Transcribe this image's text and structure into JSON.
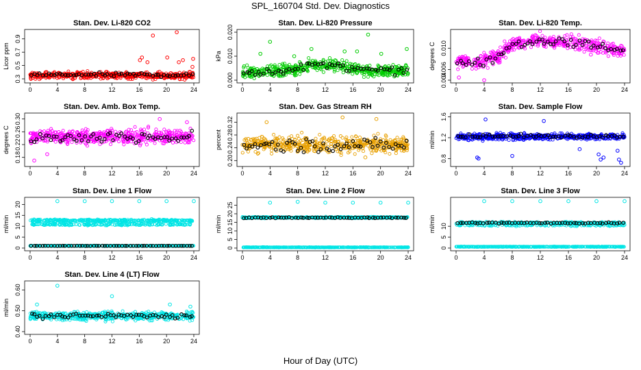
{
  "figure": {
    "title": "SPL_160704  Std. Dev. Diagnostics",
    "xlabel": "Hour of Day (UTC)"
  },
  "chart_data": [
    {
      "type": "scatter",
      "title": "Stan. Dev. Li-820 CO2",
      "ylabel": "Licor ppm",
      "xlim": [
        0,
        24
      ],
      "xticks": [
        "0",
        "4",
        "8",
        "12",
        "16",
        "20",
        "24"
      ],
      "ylim": [
        0.28,
        1.0
      ],
      "yticks": [
        "0.3",
        "0.5",
        "0.7",
        "0.9"
      ],
      "colors": {
        "cloud": "#ff0000",
        "means": "#000000"
      },
      "series": [
        {
          "role": "cloud",
          "mean": 0.35,
          "spread": 0.05,
          "count": 520,
          "outliers": [
            [
              16.1,
              0.58
            ],
            [
              16.4,
              0.62
            ],
            [
              17.2,
              0.55
            ],
            [
              18.0,
              0.95
            ],
            [
              20.1,
              0.62
            ],
            [
              21.5,
              1.0
            ],
            [
              21.8,
              0.55
            ],
            [
              22.4,
              0.58
            ],
            [
              23.8,
              0.48
            ],
            [
              23.9,
              0.6
            ]
          ]
        },
        {
          "role": "means",
          "mean": 0.36,
          "spread": 0.03,
          "count": 58
        }
      ]
    },
    {
      "type": "scatter",
      "title": "Stan. Dev. Li-820 Pressure",
      "ylabel": "kPa",
      "xlim": [
        0,
        24
      ],
      "xticks": [
        "0",
        "4",
        "8",
        "12",
        "16",
        "20",
        "24"
      ],
      "ylim": [
        0.0,
        0.02
      ],
      "yticks": [
        "0.000",
        "0.010",
        "0.020"
      ],
      "colors": {
        "cloud": "#00cc00",
        "means": "#000000"
      },
      "series": [
        {
          "role": "cloud",
          "mean": 0.004,
          "spread": 0.0025,
          "count": 520,
          "trend": [
            [
              0,
              0.003
            ],
            [
              8,
              0.0045
            ],
            [
              10,
              0.0065
            ],
            [
              14,
              0.006
            ],
            [
              18,
              0.004
            ],
            [
              24,
              0.004
            ]
          ],
          "outliers": [
            [
              2.6,
              0.011
            ],
            [
              4.0,
              0.016
            ],
            [
              7.5,
              0.01
            ],
            [
              10.0,
              0.013
            ],
            [
              14.8,
              0.012
            ],
            [
              16.6,
              0.012
            ],
            [
              18.2,
              0.019
            ],
            [
              20.1,
              0.011
            ],
            [
              23.8,
              0.013
            ]
          ]
        },
        {
          "role": "means",
          "mean": 0.0045,
          "spread": 0.0015,
          "count": 58,
          "trend": [
            [
              0,
              0.003
            ],
            [
              8,
              0.0045
            ],
            [
              10,
              0.0065
            ],
            [
              14,
              0.006
            ],
            [
              18,
              0.004
            ],
            [
              24,
              0.004
            ]
          ]
        }
      ]
    },
    {
      "type": "scatter",
      "title": "Stan. Dev. Li-820 Temp.",
      "ylabel": "degrees C",
      "xlim": [
        0,
        24
      ],
      "xticks": [
        "0",
        "4",
        "8",
        "12",
        "16",
        "20",
        "24"
      ],
      "ylim": [
        0.004,
        0.013
      ],
      "yticks": [
        "0.004",
        "0.006",
        "0.010"
      ],
      "colors": {
        "cloud": "#ff00ff",
        "means": "#000000"
      },
      "series": [
        {
          "role": "cloud",
          "mean": 0.009,
          "spread": 0.0012,
          "count": 520,
          "trend": [
            [
              0,
              0.0075
            ],
            [
              3,
              0.0072
            ],
            [
              6,
              0.0085
            ],
            [
              8,
              0.0108
            ],
            [
              12,
              0.0115
            ],
            [
              16,
              0.011
            ],
            [
              20,
              0.0105
            ],
            [
              24,
              0.0093
            ]
          ],
          "outliers": [
            [
              0.4,
              0.0045
            ],
            [
              4.0,
              0.004
            ],
            [
              19.2,
              0.0088
            ]
          ]
        },
        {
          "role": "means",
          "mean": 0.009,
          "spread": 0.0008,
          "count": 58,
          "trend": [
            [
              0,
              0.0075
            ],
            [
              3,
              0.0072
            ],
            [
              6,
              0.0085
            ],
            [
              8,
              0.0108
            ],
            [
              12,
              0.0115
            ],
            [
              16,
              0.011
            ],
            [
              20,
              0.0105
            ],
            [
              24,
              0.0093
            ]
          ]
        }
      ]
    },
    {
      "type": "scatter",
      "title": "Stan. Dev. Amb. Box Temp.",
      "ylabel": "degrees C",
      "xlim": [
        0,
        24
      ],
      "xticks": [
        "0",
        "4",
        "8",
        "12",
        "16",
        "20",
        "24"
      ],
      "ylim": [
        0.16,
        0.31
      ],
      "yticks": [
        "0.18",
        "0.22",
        "0.26",
        "0.30"
      ],
      "colors": {
        "cloud": "#ff00ff",
        "means": "#000000"
      },
      "series": [
        {
          "role": "cloud",
          "mean": 0.245,
          "spread": 0.022,
          "count": 520,
          "outliers": [
            [
              0.6,
              0.17
            ],
            [
              2.5,
              0.19
            ],
            [
              19.0,
              0.3
            ],
            [
              23.0,
              0.29
            ]
          ]
        },
        {
          "role": "means",
          "mean": 0.243,
          "spread": 0.018,
          "count": 58
        }
      ]
    },
    {
      "type": "scatter",
      "title": "Stan. Dev. Gas Stream RH",
      "ylabel": "percent",
      "xlim": [
        0,
        24
      ],
      "xticks": [
        "0",
        "4",
        "8",
        "12",
        "16",
        "20",
        "24"
      ],
      "ylim": [
        0.19,
        0.34
      ],
      "yticks": [
        "0.20",
        "0.24",
        "0.28",
        "0.32"
      ],
      "colors": {
        "cloud": "#e8a000",
        "means": "#000000"
      },
      "series": [
        {
          "role": "cloud",
          "mean": 0.25,
          "spread": 0.025,
          "count": 520,
          "outliers": [
            [
              3.5,
              0.32
            ],
            [
              14.5,
              0.335
            ],
            [
              19.4,
              0.33
            ],
            [
              17.8,
              0.21
            ]
          ]
        },
        {
          "role": "means",
          "mean": 0.248,
          "spread": 0.02,
          "count": 58
        }
      ]
    },
    {
      "type": "scatter",
      "title": "Stan. Dev. Sample Flow",
      "ylabel": "ml/min",
      "xlim": [
        0,
        24
      ],
      "xticks": [
        "0",
        "4",
        "8",
        "12",
        "16",
        "20",
        "24"
      ],
      "ylim": [
        0.7,
        1.62
      ],
      "yticks": [
        "0.8",
        "1.2",
        "1.6"
      ],
      "colors": {
        "cloud": "#0000ff",
        "means": "#000000"
      },
      "series": [
        {
          "role": "cloud",
          "mean": 1.22,
          "spread": 0.06,
          "count": 520,
          "outliers": [
            [
              3.0,
              0.82
            ],
            [
              3.2,
              0.8
            ],
            [
              4.2,
              1.55
            ],
            [
              8.0,
              0.85
            ],
            [
              12.5,
              1.52
            ],
            [
              17.6,
              0.98
            ],
            [
              20.3,
              0.88
            ],
            [
              20.6,
              0.78
            ],
            [
              21.0,
              0.82
            ],
            [
              23.2,
              0.78
            ],
            [
              23.5,
              0.72
            ],
            [
              23.0,
              0.95
            ]
          ]
        },
        {
          "role": "means",
          "mean": 1.23,
          "spread": 0.03,
          "count": 58
        }
      ]
    },
    {
      "type": "scatter",
      "title": "Stan. Dev. Line 1 Flow",
      "ylabel": "ml/min",
      "xlim": [
        0,
        24
      ],
      "xticks": [
        "0",
        "4",
        "8",
        "12",
        "16",
        "20",
        "24"
      ],
      "ylim": [
        0,
        22
      ],
      "yticks": [
        "0",
        "5",
        "10",
        "15",
        "20"
      ],
      "colors": {
        "cloud": "#00e5e5",
        "means": "#000000"
      },
      "series": [
        {
          "role": "cloud",
          "mean": 12.6,
          "spread": 0.5,
          "count": 330,
          "outliers": [
            [
              4.0,
              21.5
            ],
            [
              8.0,
              21.5
            ],
            [
              12.0,
              21.5
            ],
            [
              16.0,
              21.5
            ],
            [
              20.0,
              21.5
            ],
            [
              24.0,
              21.5
            ]
          ]
        },
        {
          "role": "cloud",
          "mean": 10.8,
          "spread": 0.4,
          "count": 200
        },
        {
          "role": "cloud",
          "mean": 1.0,
          "spread": 0.1,
          "count": 330
        },
        {
          "role": "means",
          "mean": 1.0,
          "spread": 0.05,
          "count": 58
        }
      ]
    },
    {
      "type": "scatter",
      "title": "Stan. Dev. Line 2 Flow",
      "ylabel": "ml/min",
      "xlim": [
        0,
        24
      ],
      "xticks": [
        "0",
        "4",
        "8",
        "12",
        "16",
        "20",
        "24"
      ],
      "ylim": [
        0,
        28
      ],
      "yticks": [
        "0",
        "5",
        "10",
        "15",
        "20",
        "25"
      ],
      "colors": {
        "cloud": "#00e5e5",
        "means": "#000000"
      },
      "series": [
        {
          "role": "cloud",
          "mean": 17.8,
          "spread": 0.4,
          "count": 420,
          "outliers": [
            [
              4.0,
              26.5
            ],
            [
              8.0,
              27.0
            ],
            [
              12.0,
              26.5
            ],
            [
              16.0,
              26.5
            ],
            [
              20.0,
              26.5
            ],
            [
              24.0,
              26.5
            ]
          ]
        },
        {
          "role": "cloud",
          "mean": 0.4,
          "spread": 0.1,
          "count": 420
        },
        {
          "role": "means",
          "mean": 17.7,
          "spread": 0.3,
          "count": 58
        }
      ]
    },
    {
      "type": "scatter",
      "title": "Stan. Dev. Line 3 Flow",
      "ylabel": "ml/min",
      "xlim": [
        0,
        24
      ],
      "xticks": [
        "0",
        "4",
        "8",
        "12",
        "16",
        "20",
        "24"
      ],
      "ylim": [
        0,
        22
      ],
      "yticks": [
        "0",
        "5",
        "10"
      ],
      "colors": {
        "cloud": "#00e5e5",
        "means": "#000000"
      },
      "series": [
        {
          "role": "cloud",
          "mean": 11.5,
          "spread": 0.5,
          "count": 300,
          "outliers": [
            [
              4.0,
              21.5
            ],
            [
              8.0,
              21.5
            ],
            [
              12.0,
              21.5
            ],
            [
              16.0,
              21.5
            ],
            [
              20.0,
              21.5
            ],
            [
              24.0,
              21.5
            ]
          ]
        },
        {
          "role": "cloud",
          "mean": 10.4,
          "spread": 0.3,
          "count": 120
        },
        {
          "role": "cloud",
          "mean": 0.6,
          "spread": 0.1,
          "count": 420
        },
        {
          "role": "means",
          "mean": 11.5,
          "spread": 0.3,
          "count": 58
        }
      ]
    },
    {
      "type": "scatter",
      "title": "Stan. Dev. Line 4 (LT) Flow",
      "ylabel": "ml/min",
      "xlim": [
        0,
        24
      ],
      "xticks": [
        "0",
        "4",
        "8",
        "12",
        "16",
        "20",
        "24"
      ],
      "ylim": [
        0.4,
        0.63
      ],
      "yticks": [
        "0.40",
        "0.50",
        "0.60"
      ],
      "colors": {
        "cloud": "#00e5e5",
        "means": "#000000"
      },
      "series": [
        {
          "role": "cloud",
          "mean": 0.475,
          "spread": 0.02,
          "count": 520,
          "outliers": [
            [
              4.0,
              0.62
            ],
            [
              12.0,
              0.57
            ],
            [
              1.0,
              0.53
            ],
            [
              20.5,
              0.53
            ],
            [
              23.5,
              0.52
            ]
          ]
        },
        {
          "role": "means",
          "mean": 0.475,
          "spread": 0.013,
          "count": 58
        }
      ]
    }
  ]
}
